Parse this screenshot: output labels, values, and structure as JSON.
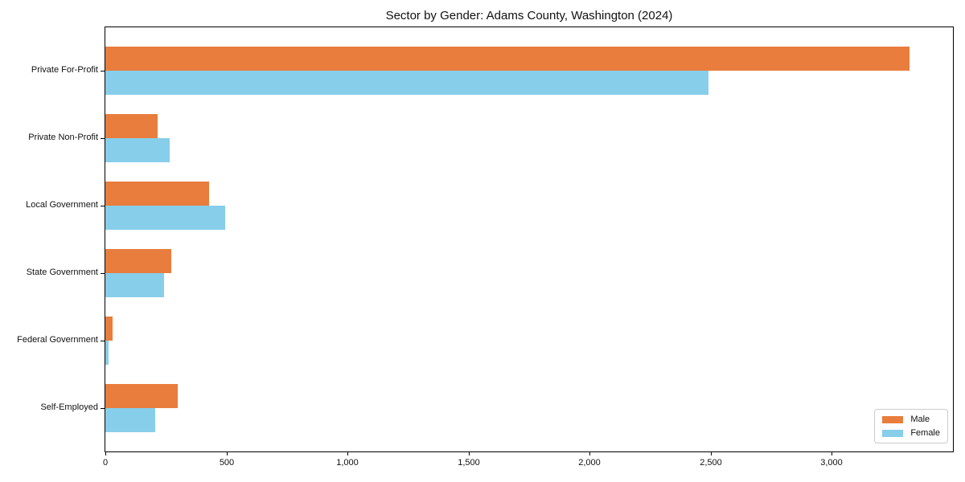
{
  "chart_data": {
    "type": "bar",
    "orientation": "horizontal",
    "title": "Sector by Gender: Adams County, Washington (2024)",
    "categories": [
      "Private For-Profit",
      "Private Non-Profit",
      "Local Government",
      "State Government",
      "Federal Government",
      "Self-Employed"
    ],
    "series": [
      {
        "name": "Male",
        "color": "#e87d3d",
        "values": [
          3320,
          215,
          430,
          272,
          30,
          300
        ]
      },
      {
        "name": "Female",
        "color": "#87ceeb",
        "values": [
          2490,
          265,
          495,
          242,
          12,
          205
        ]
      }
    ],
    "xlabel": "",
    "ylabel": "",
    "xlim": [
      0,
      3500
    ],
    "xticks": [
      0,
      500,
      1000,
      1500,
      2000,
      2500,
      3000
    ],
    "xtick_labels": [
      "0",
      "500",
      "1,000",
      "1,500",
      "2,000",
      "2,500",
      "3,000"
    ],
    "grid": false,
    "legend_position": "lower right",
    "colors": {
      "male": "#e87d3d",
      "female": "#87ceeb",
      "spine": "#000000",
      "text": "#111111",
      "legend_border": "#cccccc"
    }
  }
}
